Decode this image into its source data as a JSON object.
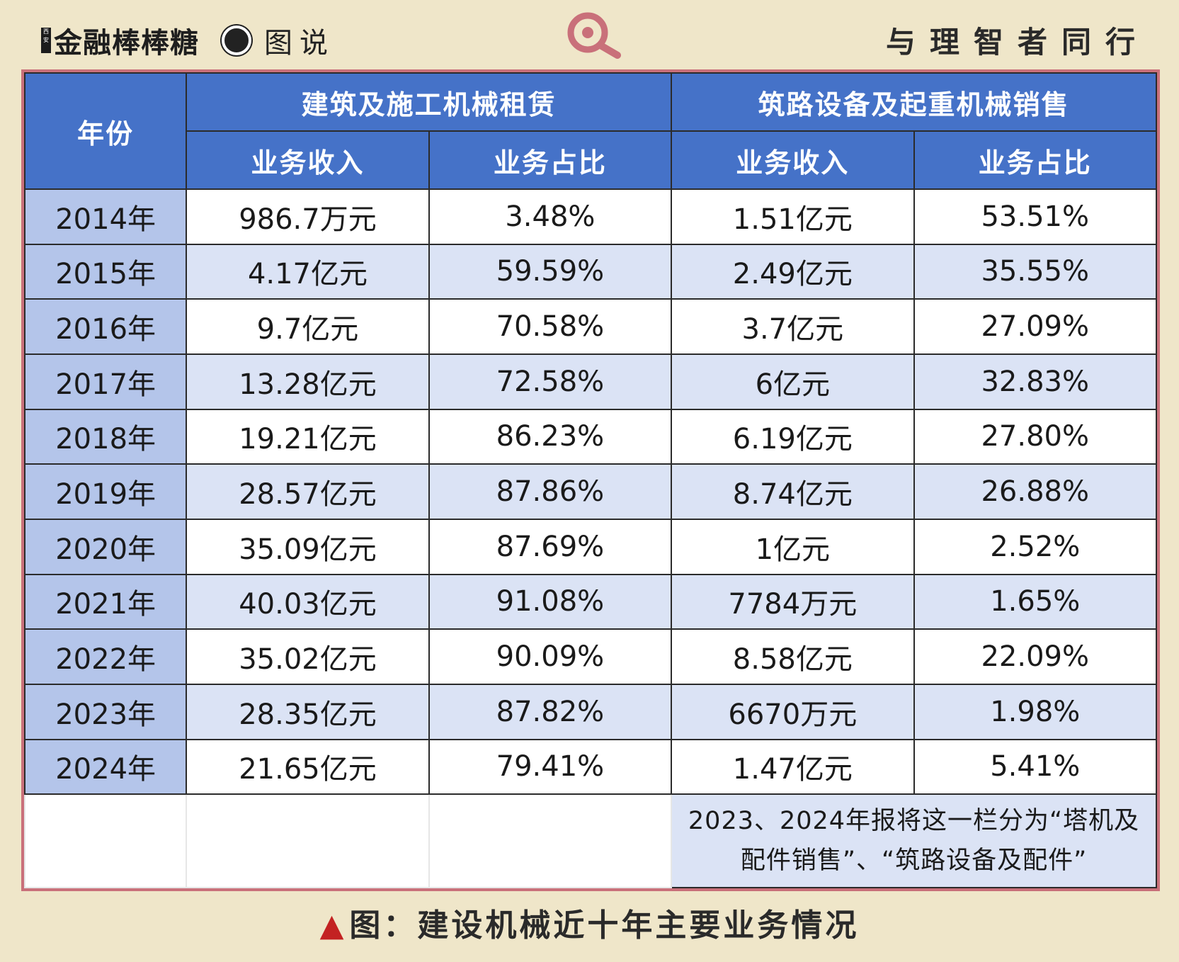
{
  "header": {
    "brand_mark": "西安",
    "brand_name": "金融棒棒糖",
    "tag": "图说",
    "slogan": "与理智者同行",
    "icons": [
      "record-dot-icon",
      "search-magnifier-icon"
    ],
    "accent_color": "#c9707a",
    "header_color": "#4572c8"
  },
  "chart_data": {
    "type": "table",
    "columns": {
      "year": "年份",
      "group1": "建筑及施工机械租赁",
      "group2": "筑路设备及起重机械销售",
      "revenue": "业务收入",
      "share": "业务占比"
    },
    "rows": [
      {
        "year": "2014年",
        "g1_revenue": "986.7万元",
        "g1_share": "3.48%",
        "g2_revenue": "1.51亿元",
        "g2_share": "53.51%"
      },
      {
        "year": "2015年",
        "g1_revenue": "4.17亿元",
        "g1_share": "59.59%",
        "g2_revenue": "2.49亿元",
        "g2_share": "35.55%"
      },
      {
        "year": "2016年",
        "g1_revenue": "9.7亿元",
        "g1_share": "70.58%",
        "g2_revenue": "3.7亿元",
        "g2_share": "27.09%"
      },
      {
        "year": "2017年",
        "g1_revenue": "13.28亿元",
        "g1_share": "72.58%",
        "g2_revenue": "6亿元",
        "g2_share": "32.83%"
      },
      {
        "year": "2018年",
        "g1_revenue": "19.21亿元",
        "g1_share": "86.23%",
        "g2_revenue": "6.19亿元",
        "g2_share": "27.80%"
      },
      {
        "year": "2019年",
        "g1_revenue": "28.57亿元",
        "g1_share": "87.86%",
        "g2_revenue": "8.74亿元",
        "g2_share": "26.88%"
      },
      {
        "year": "2020年",
        "g1_revenue": "35.09亿元",
        "g1_share": "87.69%",
        "g2_revenue": "1亿元",
        "g2_share": "2.52%"
      },
      {
        "year": "2021年",
        "g1_revenue": "40.03亿元",
        "g1_share": "91.08%",
        "g2_revenue": "7784万元",
        "g2_share": "1.65%"
      },
      {
        "year": "2022年",
        "g1_revenue": "35.02亿元",
        "g1_share": "90.09%",
        "g2_revenue": "8.58亿元",
        "g2_share": "22.09%"
      },
      {
        "year": "2023年",
        "g1_revenue": "28.35亿元",
        "g1_share": "87.82%",
        "g2_revenue": "6670万元",
        "g2_share": "1.98%"
      },
      {
        "year": "2024年",
        "g1_revenue": "21.65亿元",
        "g1_share": "79.41%",
        "g2_revenue": "1.47亿元",
        "g2_share": "5.41%"
      }
    ],
    "note": "2023、2024年报将这一栏分为“塔机及配件销售”、“筑路设备及配件”"
  },
  "caption": {
    "marker": "▲",
    "text": "图：建设机械近十年主要业务情况"
  }
}
